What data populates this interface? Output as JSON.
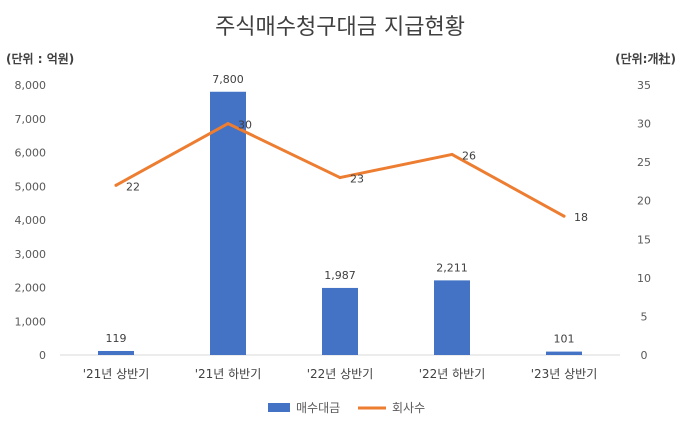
{
  "chart_data": {
    "type": "bar",
    "title": "주식매수청구대금 지급현황",
    "y_left_unit": "(단위 : 억원)",
    "y_right_unit": "(단위:개社)",
    "categories": [
      "'21년 상반기",
      "'21년 하반기",
      "'22년 상반기",
      "'22년 하반기",
      "'23년 상반기"
    ],
    "series": [
      {
        "name": "매수대금",
        "type": "bar",
        "axis": "left",
        "color": "#4472C4",
        "values": [
          119,
          7800,
          1987,
          2211,
          101
        ],
        "labels": [
          "119",
          "7,800",
          "1,987",
          "2,211",
          "101"
        ]
      },
      {
        "name": "회사수",
        "type": "line",
        "axis": "right",
        "color": "#ED7D31",
        "values": [
          22,
          30,
          23,
          26,
          18
        ],
        "labels": [
          "22",
          "30",
          "23",
          "26",
          "18"
        ]
      }
    ],
    "y_left": {
      "min": 0,
      "max": 8000,
      "ticks": [
        0,
        1000,
        2000,
        3000,
        4000,
        5000,
        6000,
        7000,
        8000
      ],
      "tick_labels": [
        "0",
        "1,000",
        "2,000",
        "3,000",
        "4,000",
        "5,000",
        "6,000",
        "7,000",
        "8,000"
      ]
    },
    "y_right": {
      "min": 0,
      "max": 35,
      "ticks": [
        0,
        5,
        10,
        15,
        20,
        25,
        30,
        35
      ],
      "tick_labels": [
        "0",
        "5",
        "10",
        "15",
        "20",
        "25",
        "30",
        "35"
      ]
    },
    "grid": false,
    "legend_position": "bottom"
  }
}
